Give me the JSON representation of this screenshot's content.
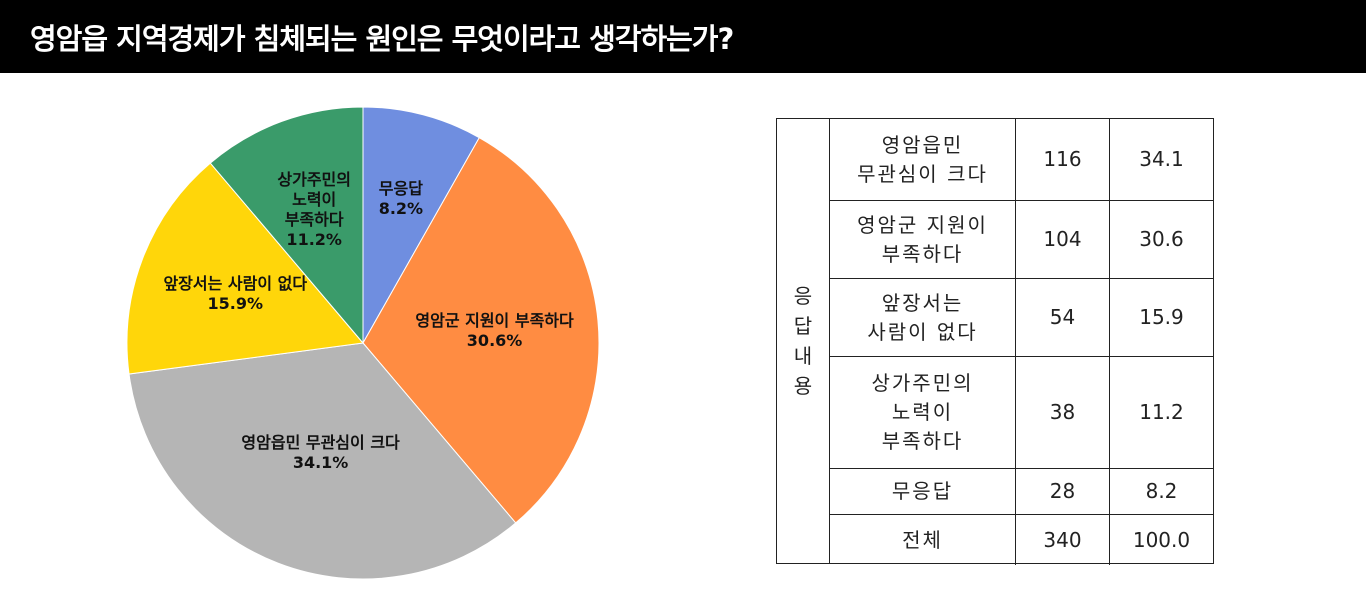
{
  "header": {
    "title": "영암읍 지역경제가 침체되는 원인은 무엇이라고 생각하는가?"
  },
  "chart_data": {
    "type": "pie",
    "title": "",
    "slices": [
      {
        "label": "무응답",
        "value": 8.2,
        "label_text": "무응답\n8.2%",
        "color": "#6f8ee0"
      },
      {
        "label": "영암군 지원이 부족하다",
        "value": 30.6,
        "label_text": "영암군 지원이 부족하다\n30.6%",
        "color": "#ff8c42"
      },
      {
        "label": "영암읍민 무관심이 크다",
        "value": 34.1,
        "label_text": "영암읍민 무관심이 크다\n34.1%",
        "color": "#b5b5b5"
      },
      {
        "label": "앞장서는 사람이 없다",
        "value": 15.9,
        "label_text": "앞장서는 사람이 없다\n15.9%",
        "color": "#ffd60a"
      },
      {
        "label": "상가주민의 노력이 부족하다",
        "value": 11.2,
        "label_text": "상가주민의\n노력이\n부족하다\n11.2%",
        "color": "#3a9b6a"
      }
    ]
  },
  "table": {
    "side_header": "응답내용",
    "rows": [
      {
        "label": "영암읍민\n무관심이 크다",
        "count": "116",
        "percent": "34.1"
      },
      {
        "label": "영암군 지원이\n부족하다",
        "count": "104",
        "percent": "30.6"
      },
      {
        "label": "앞장서는\n사람이 없다",
        "count": "54",
        "percent": "15.9"
      },
      {
        "label": "상가주민의\n노력이\n부족하다",
        "count": "38",
        "percent": "11.2"
      },
      {
        "label": "무응답",
        "count": "28",
        "percent": "8.2"
      },
      {
        "label": "전체",
        "count": "340",
        "percent": "100.0"
      }
    ]
  }
}
